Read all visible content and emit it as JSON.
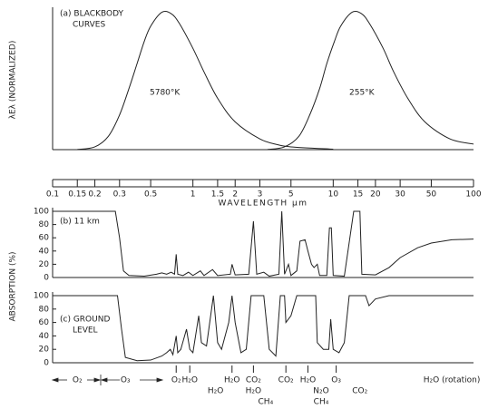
{
  "chart_data": [
    {
      "type": "line",
      "title": [
        "(a) BLACKBODY",
        "CURVES"
      ],
      "ylabel": "λEλ (NORMALIZED)",
      "xscale": "log",
      "xlim": [
        0.1,
        100
      ],
      "ylim": [
        0,
        1
      ],
      "color": "#222222",
      "series": [
        {
          "name": "5780°K",
          "x": [
            0.15,
            0.2,
            0.25,
            0.3,
            0.35,
            0.4,
            0.45,
            0.5,
            0.6,
            0.7,
            0.8,
            1.0,
            1.2,
            1.5,
            2,
            3,
            4,
            5,
            10
          ],
          "values": [
            0.001,
            0.02,
            0.097,
            0.25,
            0.44,
            0.62,
            0.78,
            0.89,
            0.99,
            0.98,
            0.91,
            0.73,
            0.56,
            0.37,
            0.2,
            0.077,
            0.036,
            0.02,
            0.003
          ]
        },
        {
          "name": "255°K",
          "x": [
            3.4,
            4.5,
            5.7,
            6.8,
            8,
            9,
            10.2,
            11.3,
            13.6,
            15.9,
            18.1,
            22.7,
            27,
            34,
            45,
            68,
            100
          ],
          "values": [
            0.001,
            0.02,
            0.097,
            0.25,
            0.44,
            0.62,
            0.78,
            0.89,
            0.99,
            0.98,
            0.91,
            0.73,
            0.56,
            0.37,
            0.2,
            0.077,
            0.04
          ]
        }
      ]
    },
    {
      "type": "axis",
      "xlabel": "WAVELENGTH μm",
      "xscale": "log",
      "xlim": [
        0.1,
        100
      ],
      "xticks": [
        0.1,
        0.15,
        0.2,
        0.3,
        0.5,
        1,
        1.5,
        2,
        3,
        5,
        10,
        15,
        20,
        30,
        50,
        100
      ]
    },
    {
      "type": "line",
      "title": [
        "(b) 11 km"
      ],
      "ylabel": "ABSORPTION (%)",
      "xscale": "log",
      "xlim": [
        0.1,
        100
      ],
      "ylim": [
        0,
        100
      ],
      "yticks": [
        0,
        20,
        40,
        60,
        80,
        100
      ],
      "color": "#222222",
      "x": [
        0.1,
        0.28,
        0.3,
        0.32,
        0.35,
        0.45,
        0.55,
        0.6,
        0.65,
        0.7,
        0.74,
        0.76,
        0.78,
        0.85,
        0.93,
        1.0,
        1.13,
        1.2,
        1.38,
        1.5,
        1.85,
        1.9,
        2.0,
        2.5,
        2.7,
        2.85,
        3.2,
        3.5,
        4.1,
        4.3,
        4.5,
        4.8,
        5.0,
        5.5,
        5.8,
        6.3,
        6.6,
        7.0,
        7.3,
        7.7,
        8.0,
        9.0,
        9.4,
        9.7,
        10,
        12,
        14,
        15.5,
        16,
        20,
        25,
        30,
        40,
        50,
        70,
        100
      ],
      "values": [
        100,
        100,
        60,
        10,
        3,
        2,
        5,
        7,
        5,
        8,
        5,
        35,
        5,
        3,
        8,
        3,
        10,
        3,
        12,
        3,
        5,
        20,
        4,
        5,
        85,
        5,
        8,
        2,
        5,
        100,
        5,
        20,
        3,
        10,
        55,
        57,
        40,
        20,
        15,
        20,
        3,
        3,
        75,
        75,
        3,
        2,
        100,
        100,
        5,
        4,
        15,
        30,
        45,
        52,
        57,
        58
      ]
    },
    {
      "type": "line",
      "title": [
        "(c) GROUND",
        "LEVEL"
      ],
      "xscale": "log",
      "xlim": [
        0.1,
        100
      ],
      "ylim": [
        0,
        100
      ],
      "yticks": [
        0,
        20,
        40,
        60,
        80,
        100
      ],
      "color": "#222222",
      "x": [
        0.1,
        0.29,
        0.31,
        0.33,
        0.4,
        0.5,
        0.6,
        0.65,
        0.69,
        0.72,
        0.76,
        0.78,
        0.82,
        0.9,
        0.95,
        1.0,
        1.1,
        1.15,
        1.25,
        1.4,
        1.5,
        1.6,
        1.8,
        1.9,
        2.0,
        2.2,
        2.4,
        2.6,
        3.2,
        3.5,
        3.9,
        4.2,
        4.5,
        4.6,
        5.0,
        5.5,
        7.5,
        7.7,
        8.5,
        9.3,
        9.6,
        10,
        11,
        12,
        13,
        17,
        18,
        20,
        25,
        100
      ],
      "values": [
        100,
        100,
        50,
        8,
        3,
        4,
        10,
        15,
        20,
        12,
        40,
        15,
        20,
        50,
        20,
        15,
        70,
        30,
        25,
        100,
        30,
        20,
        60,
        100,
        60,
        15,
        20,
        100,
        100,
        20,
        10,
        100,
        100,
        60,
        70,
        100,
        100,
        30,
        20,
        20,
        65,
        20,
        15,
        30,
        100,
        100,
        85,
        95,
        100,
        100
      ]
    },
    {
      "type": "labels",
      "xscale": "log",
      "xlim": [
        0.1,
        100
      ],
      "bands": [
        {
          "label": "O₂",
          "x": 0.15
        },
        {
          "label": "O₃",
          "x": 0.33
        },
        {
          "label": "O₂",
          "x": 0.76
        },
        {
          "label": "H₂O",
          "x": 0.95
        },
        {
          "label": "H₂O",
          "x": 1.45
        },
        {
          "label": "H₂O",
          "x": 1.9
        },
        {
          "label": "CO₂",
          "x": 2.7
        },
        {
          "label": "H₂O",
          "x": 2.7
        },
        {
          "label": "CH₄",
          "x": 3.3
        },
        {
          "label": "CO₂",
          "x": 4.6
        },
        {
          "label": "H₂O",
          "x": 6.6
        },
        {
          "label": "N₂O",
          "x": 8.2
        },
        {
          "label": "CH₄",
          "x": 8.2
        },
        {
          "label": "O₃",
          "x": 10.5
        },
        {
          "label": "CO₂",
          "x": 15.5
        },
        {
          "label": "H₂O (rotation)",
          "x": 70
        }
      ]
    }
  ]
}
